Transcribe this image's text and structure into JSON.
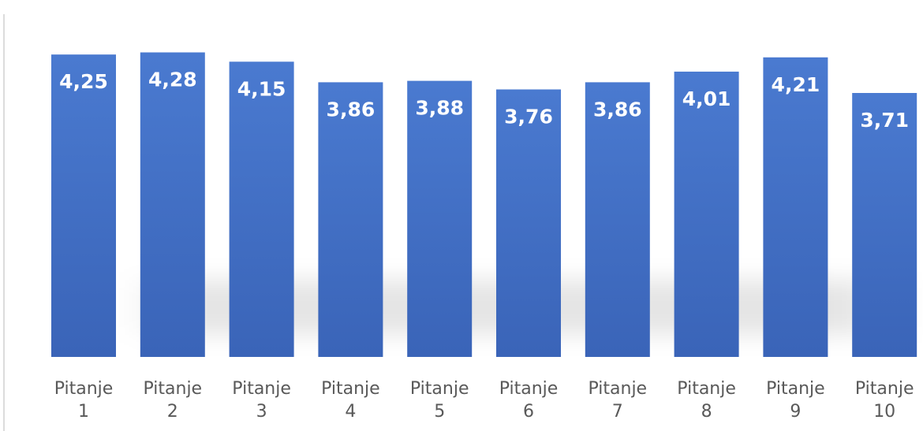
{
  "chart_data": {
    "type": "bar",
    "categories": [
      [
        "Pitanje",
        "1"
      ],
      [
        "Pitanje",
        "2"
      ],
      [
        "Pitanje",
        "3"
      ],
      [
        "Pitanje",
        "4"
      ],
      [
        "Pitanje",
        "5"
      ],
      [
        "Pitanje",
        "6"
      ],
      [
        "Pitanje",
        "7"
      ],
      [
        "Pitanje",
        "8"
      ],
      [
        "Pitanje",
        "9"
      ],
      [
        "Pitanje",
        "10"
      ]
    ],
    "values": [
      4.25,
      4.28,
      4.15,
      3.86,
      3.88,
      3.76,
      3.86,
      4.01,
      4.21,
      3.71
    ],
    "value_labels": [
      "4,25",
      "4,28",
      "4,15",
      "3,86",
      "3,88",
      "3,76",
      "3,86",
      "4,01",
      "4,21",
      "3,71"
    ],
    "title": "",
    "xlabel": "",
    "ylabel": "",
    "ylim": [
      0,
      4.33
    ],
    "grid": false,
    "legend": "none",
    "colors": {
      "bar": "#4472c4",
      "bar_dark": "#3a62b2",
      "bar_light": "#4d7fd4",
      "labels": "#ffffff",
      "categories": "#595959",
      "axis_line": "#d9d9d9"
    }
  }
}
